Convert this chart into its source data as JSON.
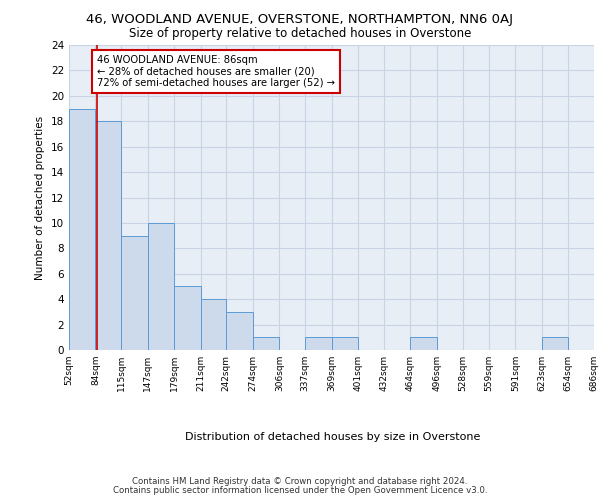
{
  "title_line1": "46, WOODLAND AVENUE, OVERSTONE, NORTHAMPTON, NN6 0AJ",
  "title_line2": "Size of property relative to detached houses in Overstone",
  "xlabel": "Distribution of detached houses by size in Overstone",
  "ylabel": "Number of detached properties",
  "footer_line1": "Contains HM Land Registry data © Crown copyright and database right 2024.",
  "footer_line2": "Contains public sector information licensed under the Open Government Licence v3.0.",
  "bin_edges": [
    52,
    84,
    115,
    147,
    179,
    211,
    242,
    274,
    306,
    337,
    369,
    401,
    432,
    464,
    496,
    528,
    559,
    591,
    623,
    654,
    686
  ],
  "bar_heights": [
    19,
    18,
    9,
    10,
    5,
    4,
    3,
    1,
    0,
    1,
    1,
    0,
    0,
    1,
    0,
    0,
    0,
    0,
    1,
    0
  ],
  "ylim": [
    0,
    24
  ],
  "yticks": [
    0,
    2,
    4,
    6,
    8,
    10,
    12,
    14,
    16,
    18,
    20,
    22,
    24
  ],
  "property_line_x": 86,
  "annotation_title": "46 WOODLAND AVENUE: 86sqm",
  "annotation_line2": "← 28% of detached houses are smaller (20)",
  "annotation_line3": "72% of semi-detached houses are larger (52) →",
  "bar_color": "#ccdaeb",
  "bar_edge_color": "#5b9bd5",
  "grid_color": "#c8d4e4",
  "annotation_box_color": "#ffffff",
  "annotation_box_edge_color": "#cc0000",
  "vline_color": "#cc0000",
  "background_color": "#e8eef6"
}
